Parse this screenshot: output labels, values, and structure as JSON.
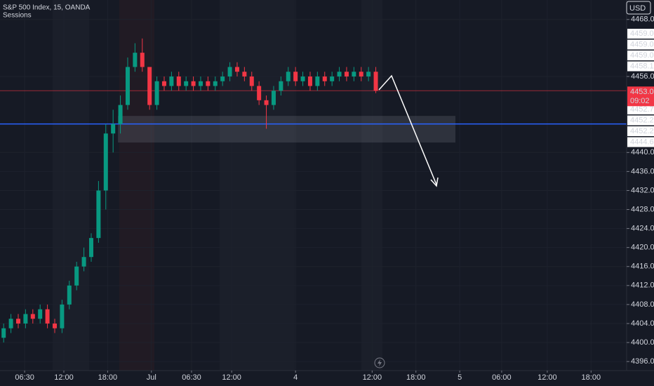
{
  "chart_data": {
    "type": "candlestick",
    "title": "S&P 500 Index, 15, OANDA",
    "subtitle": "Sessions",
    "currency": "USD",
    "up_color": "#089981",
    "down_color": "#f23645",
    "grid": true,
    "x": [
      2,
      6,
      10,
      14,
      18,
      22,
      26,
      30,
      34,
      38,
      42,
      46,
      50,
      54,
      58,
      62,
      66,
      70,
      74,
      78,
      82,
      86,
      90,
      94,
      98,
      102,
      106,
      110,
      114,
      118,
      122,
      126,
      130,
      134,
      138,
      142,
      146,
      150,
      154,
      158,
      162,
      166,
      170,
      174,
      178,
      182,
      186,
      190,
      194,
      198,
      202,
      206
    ],
    "open": [
      4401,
      4403,
      4405,
      4404,
      4406,
      4405,
      4407,
      4404,
      4403,
      4408,
      4412,
      4416,
      4418,
      4422,
      4432,
      4444,
      4446,
      4450,
      4458,
      4461,
      4458,
      4450,
      4455,
      4454,
      4456,
      4454,
      4455,
      4454,
      4455,
      4454,
      4455,
      4456,
      4458,
      4457,
      4456,
      4454,
      4451,
      4450,
      4453,
      4455,
      4457,
      4455,
      4456,
      4454,
      4456,
      4455,
      4456,
      4457,
      4456,
      4457,
      4456,
      4457
    ],
    "high": [
      4404,
      4406,
      4406,
      4407,
      4407,
      4408,
      4408,
      4405,
      4409,
      4413,
      4417,
      4420,
      4423,
      4434,
      4446,
      4449,
      4452,
      4460,
      4463,
      4464,
      4458,
      4456,
      4456,
      4457,
      4457,
      4456,
      4456,
      4456,
      4456,
      4456,
      4457,
      4459,
      4459,
      4458,
      4457,
      4455,
      4452,
      4454,
      4456,
      4458,
      4458,
      4457,
      4457,
      4457,
      4457,
      4457,
      4458,
      4458,
      4458,
      4458,
      4458,
      4458
    ],
    "low": [
      4400,
      4402,
      4403,
      4403,
      4404,
      4404,
      4403,
      4402,
      4402,
      4407,
      4411,
      4415,
      4417,
      4421,
      4428,
      4440,
      4444,
      4449,
      4457,
      4457,
      4449,
      4449,
      4453,
      4453,
      4453,
      4453,
      4453,
      4453,
      4453,
      4453,
      4454,
      4455,
      4456,
      4455,
      4453,
      4450,
      4445,
      4449,
      4452,
      4454,
      4454,
      4454,
      4453,
      4453,
      4454,
      4454,
      4455,
      4455,
      4455,
      4455,
      4455,
      4452.5
    ],
    "close": [
      4403,
      4405,
      4404,
      4406,
      4405,
      4407,
      4404,
      4403,
      4408,
      4412,
      4416,
      4418,
      4422,
      4432,
      4444,
      4446,
      4450,
      4458,
      4461,
      4458,
      4450,
      4455,
      4454,
      4456,
      4454,
      4455,
      4454,
      4455,
      4454,
      4455,
      4456,
      4458,
      4457,
      4456,
      4454,
      4451,
      4450,
      4453,
      4455,
      4457,
      4455,
      4456,
      4454,
      4456,
      4455,
      4456,
      4457,
      4456,
      4457,
      4456,
      4457,
      4453
    ],
    "xlim": [
      0,
      343.5
    ],
    "xticks": [
      {
        "value": 13.5,
        "label": "06:30"
      },
      {
        "value": 35,
        "label": "12:00"
      },
      {
        "value": 59,
        "label": "18:00"
      },
      {
        "value": 83,
        "label": "Jul"
      },
      {
        "value": 105,
        "label": "06:30"
      },
      {
        "value": 127,
        "label": "12:00"
      },
      {
        "value": 162,
        "label": "4"
      },
      {
        "value": 204,
        "label": "12:00"
      },
      {
        "value": 228,
        "label": "18:00"
      },
      {
        "value": 252,
        "label": "5"
      },
      {
        "value": 275,
        "label": "06:00"
      },
      {
        "value": 300,
        "label": "12:00"
      },
      {
        "value": 324,
        "label": "18:00"
      }
    ],
    "ylim": [
      4394.1,
      4472.1
    ],
    "yticks": [
      {
        "value": 4468,
        "label": "4468.0"
      },
      {
        "value": 4456,
        "label": "4456.0"
      },
      {
        "value": 4440,
        "label": "4440.0"
      },
      {
        "value": 4436,
        "label": "4436.0"
      },
      {
        "value": 4432,
        "label": "4432.0"
      },
      {
        "value": 4428,
        "label": "4428.0"
      },
      {
        "value": 4424,
        "label": "4424.0"
      },
      {
        "value": 4420,
        "label": "4420.0"
      },
      {
        "value": 4416,
        "label": "4416.0"
      },
      {
        "value": 4412,
        "label": "4412.0"
      },
      {
        "value": 4408,
        "label": "4408.0"
      },
      {
        "value": 4404,
        "label": "4404.0"
      },
      {
        "value": 4400,
        "label": "4400.0"
      },
      {
        "value": 4396,
        "label": "4396.0"
      }
    ],
    "price_labels": [
      {
        "value": 4459,
        "label": "4459.0"
      },
      {
        "value": 4459,
        "label": "4459.0"
      },
      {
        "value": 4459,
        "label": "4459.0"
      },
      {
        "value": 4458.1,
        "label": "4458.1"
      }
    ],
    "lower_labels": [
      {
        "value": 4452.7,
        "label": "4452.7"
      },
      {
        "value": 4452.2,
        "label": "4452.2"
      },
      {
        "value": 4452.2,
        "label": "4452.2"
      },
      {
        "value": 4444.6,
        "label": "4444.6"
      }
    ],
    "last_price": {
      "value": 4453,
      "label": "4453.0"
    },
    "countdown": "09:02",
    "blue_line": 4446,
    "zone": [
      4442.1,
      4447.7
    ]
  }
}
